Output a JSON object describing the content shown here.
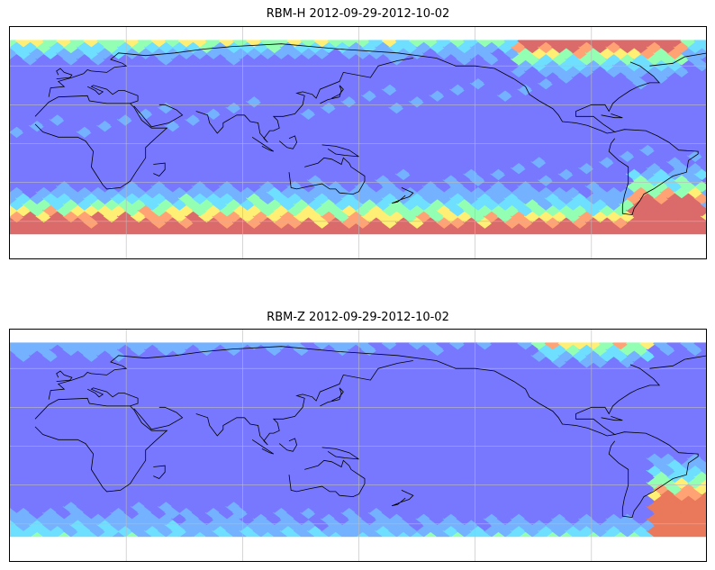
{
  "panels": [
    {
      "title": "RBM-H 2012-09-29-2012-10-02",
      "field": "H",
      "colors": {
        "low": "#6a6aff",
        "mid": "#5fdcff",
        "high": "#ffee66",
        "max": "#d85a5a"
      }
    },
    {
      "title": "RBM-Z 2012-09-29-2012-10-02",
      "field": "Z",
      "colors": {
        "low": "#6a6aff",
        "mid": "#5fdcff",
        "high": "#ffee66",
        "max": "#e86a4a"
      }
    }
  ],
  "map": {
    "projection": "plate-carree",
    "lon_range": [
      -30,
      330
    ],
    "lat_range": [
      -90,
      90
    ],
    "data_lat_range": [
      -70,
      80
    ],
    "gridlines": true,
    "coastlines": true
  }
}
